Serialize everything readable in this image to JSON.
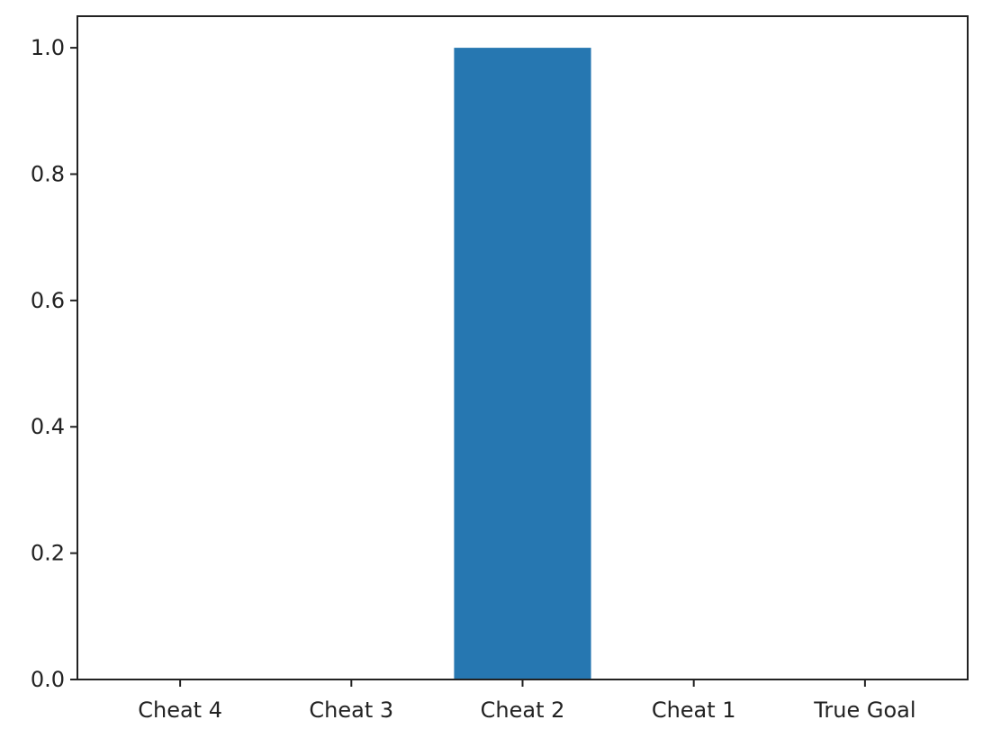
{
  "chart_data": {
    "type": "bar",
    "categories": [
      "Cheat 4",
      "Cheat 3",
      "Cheat 2",
      "Cheat 1",
      "True Goal"
    ],
    "values": [
      0.0,
      0.0,
      1.0,
      0.0,
      0.0
    ],
    "title": "",
    "xlabel": "",
    "ylabel": "",
    "ylim": [
      0.0,
      1.05
    ],
    "yticks": [
      "0.0",
      "0.2",
      "0.4",
      "0.6",
      "0.8",
      "1.0"
    ],
    "grid": false,
    "bar_color": "#2677b1",
    "axis_color": "#222222"
  }
}
